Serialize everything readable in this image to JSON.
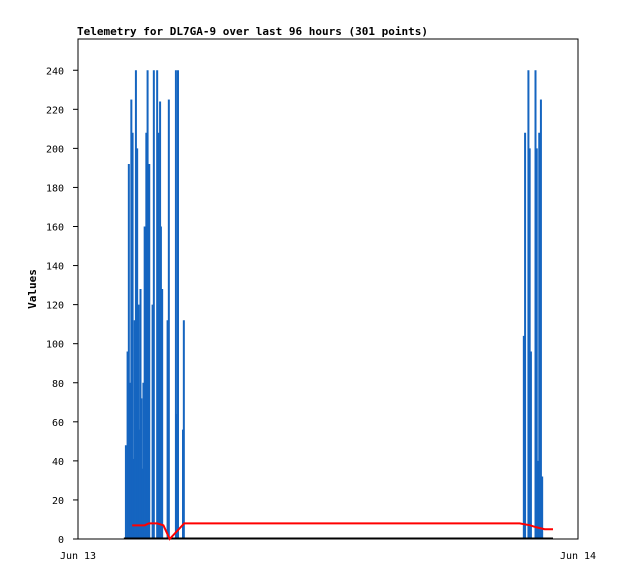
{
  "chart_data": {
    "type": "bar",
    "title": "Telemetry for DL7GA-9 over last 96 hours (301 points)",
    "xlabel": "",
    "ylabel": "Values",
    "x_tick_labels": [
      "Jun 13",
      "Jun 14"
    ],
    "ylim": [
      0,
      256
    ],
    "yticks": [
      0,
      20,
      40,
      60,
      80,
      100,
      120,
      140,
      160,
      180,
      200,
      220,
      240
    ],
    "grid": false,
    "colors": {
      "bars": "#1565c0",
      "line": "#ff0000",
      "baseline": "#000000",
      "frame": "#000000"
    },
    "x_unit": "hours since Jun 13 00:00",
    "xlim": [
      0,
      24
    ],
    "series": [
      {
        "type": "bar",
        "points": [
          [
            2.3,
            48
          ],
          [
            2.38,
            96
          ],
          [
            2.44,
            192
          ],
          [
            2.5,
            80
          ],
          [
            2.56,
            225
          ],
          [
            2.62,
            208
          ],
          [
            2.68,
            41
          ],
          [
            2.72,
            112
          ],
          [
            2.78,
            240
          ],
          [
            2.84,
            200
          ],
          [
            2.9,
            120
          ],
          [
            2.96,
            56
          ],
          [
            3.0,
            128
          ],
          [
            3.04,
            72
          ],
          [
            3.08,
            36
          ],
          [
            3.14,
            80
          ],
          [
            3.2,
            160
          ],
          [
            3.24,
            112
          ],
          [
            3.28,
            208
          ],
          [
            3.34,
            240
          ],
          [
            3.38,
            144
          ],
          [
            3.42,
            192
          ],
          [
            3.58,
            120
          ],
          [
            3.64,
            240
          ],
          [
            3.8,
            240
          ],
          [
            3.86,
            208
          ],
          [
            3.9,
            120
          ],
          [
            3.94,
            224
          ],
          [
            3.98,
            160
          ],
          [
            4.04,
            128
          ],
          [
            4.3,
            112
          ],
          [
            4.36,
            225
          ],
          [
            4.7,
            240
          ],
          [
            4.74,
            64
          ],
          [
            4.8,
            240
          ],
          [
            5.04,
            56
          ],
          [
            5.08,
            112
          ],
          [
            21.4,
            104
          ],
          [
            21.46,
            208
          ],
          [
            21.62,
            240
          ],
          [
            21.68,
            200
          ],
          [
            21.74,
            96
          ],
          [
            21.96,
            240
          ],
          [
            22.02,
            200
          ],
          [
            22.08,
            40
          ],
          [
            22.14,
            208
          ],
          [
            22.22,
            225
          ],
          [
            22.28,
            32
          ]
        ]
      },
      {
        "type": "line",
        "points": [
          [
            2.6,
            7
          ],
          [
            3.2,
            7
          ],
          [
            3.4,
            8
          ],
          [
            3.8,
            8
          ],
          [
            4.1,
            7
          ],
          [
            4.4,
            0
          ],
          [
            5.1,
            8
          ],
          [
            21.2,
            8
          ],
          [
            21.7,
            7
          ],
          [
            22.0,
            6
          ],
          [
            22.4,
            5
          ],
          [
            22.8,
            5
          ]
        ]
      }
    ],
    "baseline_range": [
      2.2,
      22.8
    ]
  }
}
